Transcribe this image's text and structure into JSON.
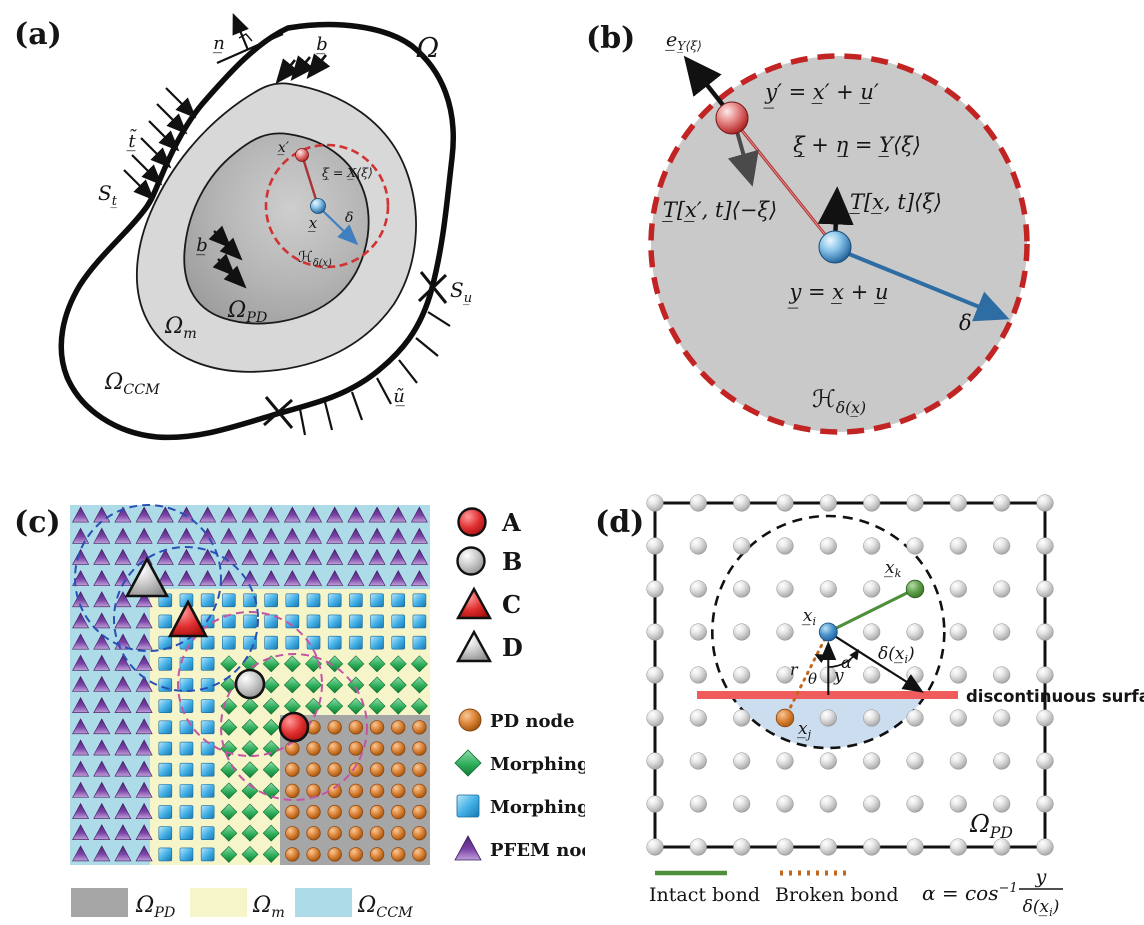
{
  "figure": {
    "panel_a": {
      "tag": "(a)",
      "domain": "Ω",
      "normal": "n̲",
      "body_force_top": "b̲",
      "traction": "t̲̃",
      "surface_t_base": "S",
      "surface_t_sub": "t̲",
      "surface_u_base": "S",
      "surface_u_sub": "u̲",
      "displacement": "ũ̲",
      "body_force_inner": "b̲",
      "region_pd_base": "Ω",
      "region_pd_sub": "PD",
      "region_m_base": "Ω",
      "region_m_sub": "m",
      "region_ccm_base": "Ω",
      "region_ccm_sub": "CCM",
      "point_x_prime": "x̲′",
      "bond": "ξ̲ = X̲⟨ξ⟩",
      "point_x": "x̲",
      "delta": "δ",
      "horizon_base": "ℋ",
      "horizon_sub": "δ(x̲)"
    },
    "panel_b": {
      "tag": "(b)",
      "unit_vector_base": "e̲",
      "unit_vector_sub": "Y̲⟨ξ⟩",
      "deformed_prime": "y̲′ = x̲′ + u̲′",
      "deformation_state": "ξ̲ + η̲ = Y̲⟨ξ⟩",
      "force_state_prime": "T̲[x̲′, t]⟨−ξ⟩",
      "force_state": "T̲[x̲, t]⟨ξ⟩",
      "deformed": "y̲ = x̲ + u̲",
      "delta": "δ",
      "horizon_base": "ℋ",
      "horizon_sub": "δ(x̲)"
    },
    "panel_c": {
      "tag": "(c)",
      "point_legend": [
        {
          "label": "A",
          "shape": "red-sphere"
        },
        {
          "label": "B",
          "shape": "gray-sphere"
        },
        {
          "label": "C",
          "shape": "red-triangle"
        },
        {
          "label": "D",
          "shape": "gray-triangle"
        }
      ],
      "node_legend": [
        {
          "label": "PD node",
          "shape": "orange-sphere"
        },
        {
          "label": "Morphing node",
          "shape": "green-diamond"
        },
        {
          "label": "Morphing node",
          "shape": "blue-square"
        },
        {
          "label": "PFEM node",
          "shape": "purple-triangle"
        }
      ],
      "region_legend": [
        {
          "base": "Ω",
          "sub": "PD",
          "color": "#a6a6a6"
        },
        {
          "base": "Ω",
          "sub": "m",
          "color": "#f6f4c9"
        },
        {
          "base": "Ω",
          "sub": "CCM",
          "color": "#aedbe8"
        }
      ],
      "grid": {
        "cols": 17,
        "rows": 17
      }
    },
    "panel_d": {
      "tag": "(d)",
      "node_i_base": "x̲",
      "node_i_sub": "i",
      "node_k_base": "x̲",
      "node_k_sub": "k",
      "node_j_base": "x̲",
      "node_j_sub": "j",
      "radius_base": "δ(x̲",
      "radius_sub": "i",
      "radius_tail": ")",
      "alpha": "α",
      "theta": "θ",
      "y": "y",
      "r": "r",
      "surface": "discontinuous surfaces",
      "region_pd_base": "Ω",
      "region_pd_sub": "PD",
      "legend_intact": "Intact bond",
      "legend_broken": "Broken bond",
      "formula_lhs": "α = cos",
      "formula_sup": "−1",
      "formula_num": "y",
      "formula_den_base": "δ(x̲",
      "formula_den_sub": "i",
      "formula_den_tail": ")",
      "grid": {
        "cols": 10,
        "rows": 9
      }
    },
    "colors": {
      "pfem_purple": "#6b3996",
      "morphing_blue": "#45b2e8",
      "morphing_green": "#2fae5b",
      "pd_orange": "#d4772e",
      "region_pd_gray": "#a6a6a6",
      "region_m_yellow": "#f6f4c9",
      "region_ccm_blue": "#aedbe8",
      "horizon_dash_red": "#c22424",
      "neighborhood_blue_dash": "#2b50b5",
      "neighborhood_pink_dash": "#c355a5",
      "surface_red": "#f05b5b",
      "bond_intact_green": "#4e8f3c",
      "bond_broken_orange": "#c2671f",
      "node_i_blue": "#2878be",
      "node_k_green": "#3f8f2f",
      "node_j_orange": "#c2671f"
    }
  }
}
